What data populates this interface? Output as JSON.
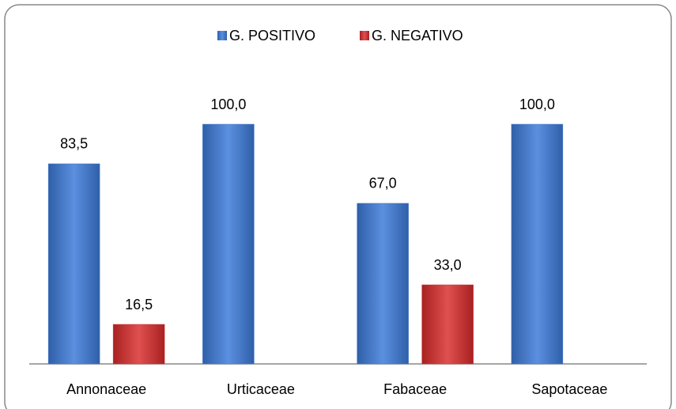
{
  "chart_data": {
    "type": "bar",
    "categories": [
      "Annonaceae",
      "Urticaceae",
      "Fabaceae",
      "Sapotaceae"
    ],
    "series": [
      {
        "name": "G. POSITIVO",
        "color": "#4a7fd0",
        "values": [
          83.5,
          100,
          67,
          100
        ],
        "value_labels": [
          "83,5",
          "100,0",
          "67,0",
          "100,0"
        ]
      },
      {
        "name": "G. NEGATIVO",
        "color": "#d43c3c",
        "values": [
          16.5,
          null,
          33,
          null
        ],
        "value_labels": [
          "16,5",
          null,
          "33,0",
          null
        ]
      }
    ],
    "ylim": [
      0,
      100
    ],
    "legend": "top"
  }
}
